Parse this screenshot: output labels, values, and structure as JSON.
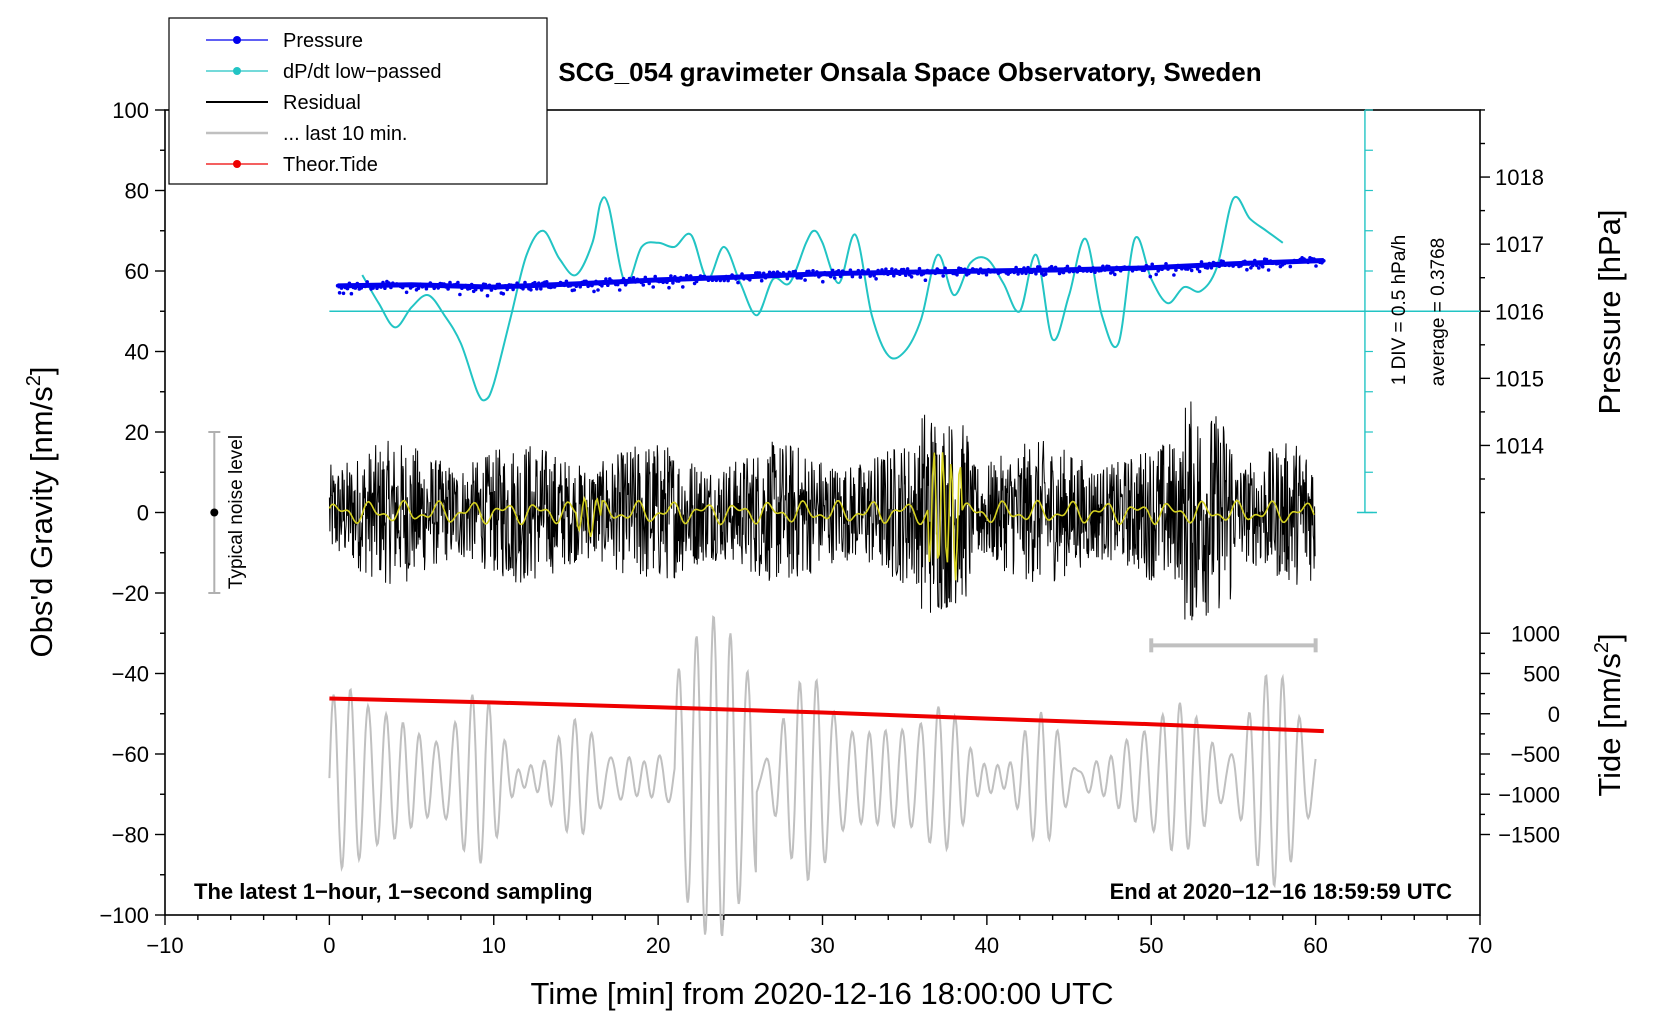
{
  "chart_data": {
    "type": "line",
    "title": "SCG_054 gravimeter Onsala Space Observatory, Sweden",
    "xlabel": "Time [min] from 2020-12-16 18:00:00 UTC",
    "ylabel_left": "Obs'd Gravity [nm/s²]",
    "ylabel_left_main": "Obs'd Gravity [nm/s",
    "ylabel_left_sup": "2",
    "ylabel_left_end": "]",
    "ylabel_right_pressure": "Pressure [hPa]",
    "ylabel_right_tide": "Tide [nm/s²]",
    "ylabel_right_tide_main": "Tide [nm/s",
    "ylabel_right_tide_sup": "2",
    "ylabel_right_tide_end": "]",
    "xlim": [
      -10,
      70
    ],
    "ylim": [
      -100,
      100
    ],
    "xticks": [
      "−10",
      "0",
      "10",
      "20",
      "30",
      "40",
      "50",
      "60",
      "70"
    ],
    "xtick_values": [
      -10,
      0,
      10,
      20,
      30,
      40,
      50,
      60,
      70
    ],
    "yticks": [
      "−100",
      "−80",
      "−60",
      "−40",
      "−20",
      "0",
      "20",
      "40",
      "60",
      "80",
      "100"
    ],
    "ytick_values": [
      -100,
      -80,
      -60,
      -40,
      -20,
      0,
      20,
      40,
      60,
      80,
      100
    ],
    "pressure_axis": {
      "ticks": [
        "1014",
        "1015",
        "1016",
        "1017",
        "1018"
      ],
      "tick_values": [
        1014,
        1015,
        1016,
        1017,
        1018
      ],
      "map_to_gravity": {
        "hpa_at_gravity_50": 1016,
        "gravity_per_hpa": 16.67
      }
    },
    "tide_axis": {
      "ticks": [
        "−1500",
        "−1000",
        "−500",
        "0",
        "500",
        "1000"
      ],
      "tick_values": [
        -1500,
        -1000,
        -500,
        0,
        500,
        1000
      ],
      "map_to_gravity": {
        "tide_at_gravity_minus_50": 0,
        "gravity_per_nm": 0.02
      }
    },
    "dpdt_scale": {
      "label": "1 DIV = 0.5 hPa/h",
      "average": "average = 0.3768",
      "x_minute": 63,
      "y_range": [
        0,
        100
      ]
    },
    "legend": {
      "position": "top-left",
      "entries": [
        {
          "label": "Pressure",
          "color": "#0000ee",
          "marker": true
        },
        {
          "label": "dP/dt low−passed",
          "color": "#22c4c4",
          "marker": true
        },
        {
          "label": "Residual",
          "color": "#000000",
          "marker": false
        },
        {
          "label": "... last 10 min.",
          "color": "#c0c0c0",
          "marker": false
        },
        {
          "label": "Theor.Tide",
          "color": "#ee0000",
          "marker": true
        }
      ]
    },
    "annotations": {
      "left_note": "The latest 1−hour, 1−second sampling",
      "right_note": "End at 2020−12−16 18:59:59 UTC",
      "noise_label": "Typical noise level",
      "noise_range": [
        -20,
        20
      ],
      "noise_x": -7,
      "last10_bar": [
        50,
        60
      ],
      "last10_y": -33
    },
    "series": [
      {
        "name": "Pressure",
        "color": "#0000ee",
        "x": [
          0.5,
          5,
          10,
          15,
          20,
          25,
          30,
          35,
          40,
          45,
          50,
          55,
          60.5
        ],
        "y": [
          56.3,
          56.6,
          56.0,
          56.8,
          57.8,
          58.5,
          59.3,
          59.7,
          60.0,
          60.3,
          60.8,
          61.8,
          62.6
        ]
      },
      {
        "name": "dP/dt low−passed",
        "color": "#22c4c4",
        "x": [
          2,
          3,
          4,
          5,
          6,
          7,
          8,
          9,
          9.5,
          10,
          11,
          12,
          13,
          14,
          15,
          16,
          16.5,
          17,
          18,
          19,
          20,
          21,
          22,
          23,
          24,
          25,
          26,
          27,
          28,
          29,
          29.5,
          30,
          31,
          32,
          33,
          34,
          35,
          36,
          37,
          38,
          39,
          40,
          41,
          42,
          43,
          44,
          45,
          46,
          47,
          48,
          49,
          50,
          51,
          52,
          53,
          54,
          55,
          56,
          57,
          58
        ],
        "y": [
          59,
          52,
          46,
          51,
          54,
          49,
          42,
          30,
          28,
          32,
          48,
          64,
          70,
          63,
          59,
          67,
          77,
          76,
          57,
          66,
          67,
          66,
          69,
          58,
          66,
          57,
          49,
          58,
          57,
          67,
          70,
          67,
          57,
          69,
          49,
          39,
          40,
          48,
          64,
          54,
          62,
          63,
          57,
          50,
          64,
          43,
          54,
          68,
          49,
          42,
          68,
          58,
          52,
          56,
          55,
          61,
          78,
          73,
          70,
          67
        ]
      },
      {
        "name": "Residual",
        "color": "#000000",
        "x": [
          0,
          60
        ],
        "y_center": 0,
        "y_envelope": 25
      },
      {
        "name": "... last 10 min.",
        "color": "#c0c0c0",
        "x": [
          0,
          60
        ],
        "y_center": -66,
        "y_envelope": 20
      },
      {
        "name": "Theor.Tide",
        "color": "#ee0000",
        "x": [
          0,
          10,
          20,
          30,
          40,
          50,
          60.5
        ],
        "y": [
          -46.2,
          -47.2,
          -48.4,
          -49.7,
          -51.2,
          -52.6,
          -54.3
        ]
      }
    ]
  }
}
